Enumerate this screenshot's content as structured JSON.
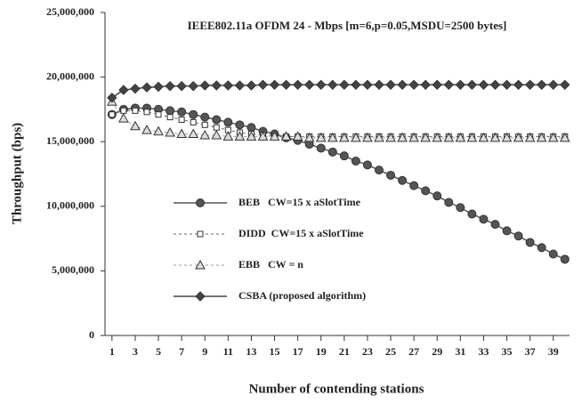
{
  "chart_data": {
    "type": "line",
    "title": "IEEE802.11a OFDM 24 - Mbps [m=6,p=0.05,MSDU=2500 bytes]",
    "x_label": "Number of contending stations",
    "y_label": "Throughput (bps)",
    "x": [
      1,
      2,
      3,
      4,
      5,
      6,
      7,
      8,
      9,
      10,
      11,
      12,
      13,
      14,
      15,
      16,
      17,
      18,
      19,
      20,
      21,
      22,
      23,
      24,
      25,
      26,
      27,
      28,
      29,
      30,
      31,
      32,
      33,
      34,
      35,
      36,
      37,
      38,
      39,
      40
    ],
    "xlim": [
      0.4,
      40.4
    ],
    "xticks": [
      1,
      3,
      5,
      7,
      9,
      11,
      13,
      15,
      17,
      19,
      21,
      23,
      25,
      27,
      29,
      31,
      33,
      35,
      37,
      39
    ],
    "ylim": [
      0,
      25000000
    ],
    "yticks": [
      0,
      {
        "value": 5000000,
        "label": "5,000,000"
      },
      {
        "value": 10000000,
        "label": "10,000,000"
      },
      {
        "value": 15000000,
        "label": "15,000,000"
      },
      {
        "value": 20000000,
        "label": "20,000,000"
      },
      {
        "value": 25000000,
        "label": "25,000,000"
      }
    ],
    "series": [
      {
        "name": "BEB   CW=15 x aSlotTime",
        "color": "#555555",
        "marker": "circle",
        "dash": false,
        "values": [
          17100000,
          17500000,
          17600000,
          17600000,
          17500000,
          17400000,
          17300000,
          17100000,
          16900000,
          16700000,
          16500000,
          16300000,
          16100000,
          15800000,
          15600000,
          15300000,
          15100000,
          14800000,
          14500000,
          14200000,
          13900000,
          13500000,
          13200000,
          12800000,
          12400000,
          12000000,
          11600000,
          11200000,
          10800000,
          10300000,
          9900000,
          9400000,
          9000000,
          8600000,
          8100000,
          7700000,
          7200000,
          6800000,
          6300000,
          5900000
        ]
      },
      {
        "name": "DIDD  CW=15 x aSlotTime",
        "color": "#666666",
        "marker": "square",
        "dash": true,
        "values": [
          17100000,
          17400000,
          17400000,
          17300000,
          17100000,
          16900000,
          16700000,
          16500000,
          16300000,
          16100000,
          15900000,
          15700000,
          15600000,
          15500000,
          15400000,
          15400000,
          15400000,
          15400000,
          15400000,
          15400000,
          15400000,
          15400000,
          15400000,
          15400000,
          15400000,
          15400000,
          15400000,
          15400000,
          15400000,
          15400000,
          15400000,
          15400000,
          15400000,
          15400000,
          15400000,
          15400000,
          15400000,
          15400000,
          15400000,
          15400000
        ]
      },
      {
        "name": "EBB   CW = n",
        "color": "#999999",
        "marker": "triangle",
        "dash": true,
        "values": [
          18100000,
          16800000,
          16200000,
          15900000,
          15800000,
          15700000,
          15600000,
          15600000,
          15500000,
          15500000,
          15400000,
          15400000,
          15400000,
          15400000,
          15400000,
          15400000,
          15400000,
          15300000,
          15300000,
          15300000,
          15300000,
          15300000,
          15300000,
          15300000,
          15300000,
          15300000,
          15300000,
          15300000,
          15300000,
          15300000,
          15300000,
          15300000,
          15300000,
          15300000,
          15300000,
          15300000,
          15300000,
          15300000,
          15300000,
          15300000
        ]
      },
      {
        "name": "CSBA (proposed algorithm)",
        "color": "#444444",
        "marker": "diamond",
        "dash": false,
        "values": [
          18400000,
          19000000,
          19100000,
          19200000,
          19250000,
          19300000,
          19300000,
          19300000,
          19350000,
          19350000,
          19350000,
          19350000,
          19350000,
          19400000,
          19400000,
          19400000,
          19400000,
          19400000,
          19400000,
          19400000,
          19400000,
          19400000,
          19400000,
          19400000,
          19400000,
          19400000,
          19400000,
          19400000,
          19400000,
          19400000,
          19400000,
          19400000,
          19400000,
          19400000,
          19400000,
          19400000,
          19400000,
          19400000,
          19400000,
          19400000
        ]
      }
    ]
  }
}
